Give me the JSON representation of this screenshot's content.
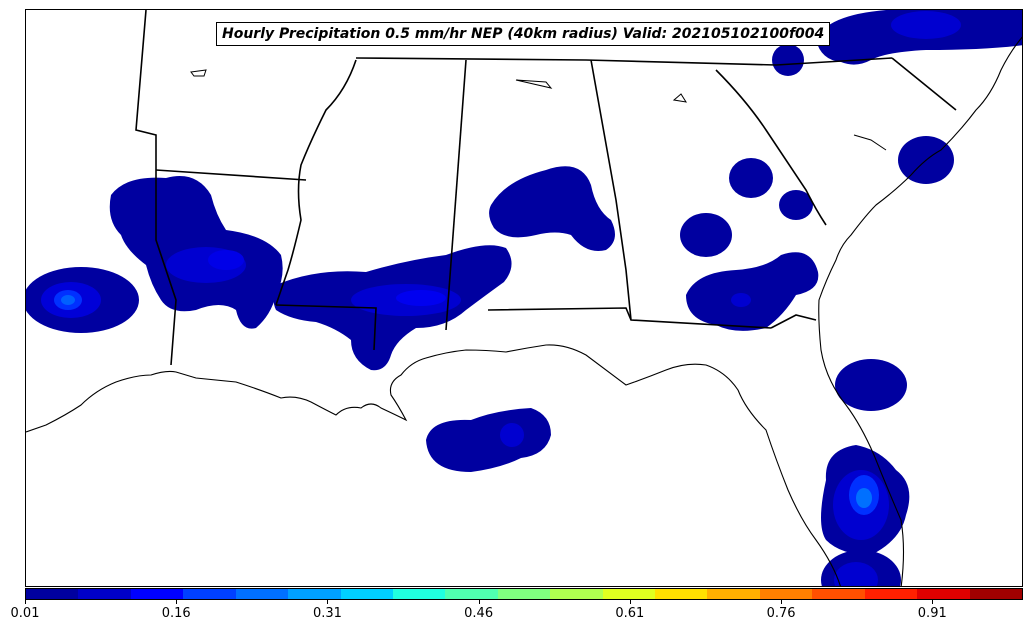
{
  "title": "Hourly Precipitation 0.5 mm/hr NEP (40km radius) Valid: 202105102100f004",
  "colors": {
    "level_1": "#0000a0",
    "level_2": "#0000d0",
    "level_3": "#0000ff",
    "level_4": "#0040ff",
    "coast": "#000000",
    "state_lines": "#000000"
  },
  "colorbar": {
    "colors": [
      "#00009f",
      "#0000c8",
      "#0000ff",
      "#0040ff",
      "#0070ff",
      "#00a0ff",
      "#00d0ff",
      "#20ffe0",
      "#50ffb0",
      "#80ff80",
      "#b0ff50",
      "#e0ff20",
      "#ffe000",
      "#ffb000",
      "#ff8000",
      "#ff5000",
      "#ff2000",
      "#e00000",
      "#a00000"
    ],
    "ticks": [
      {
        "value": 0.01,
        "label": "0.01"
      },
      {
        "value": 0.16,
        "label": "0.16"
      },
      {
        "value": 0.31,
        "label": "0.31"
      },
      {
        "value": 0.46,
        "label": "0.46"
      },
      {
        "value": 0.61,
        "label": "0.61"
      },
      {
        "value": 0.76,
        "label": "0.76"
      },
      {
        "value": 0.91,
        "label": "0.91"
      }
    ],
    "range": [
      0.01,
      1.0
    ]
  }
}
